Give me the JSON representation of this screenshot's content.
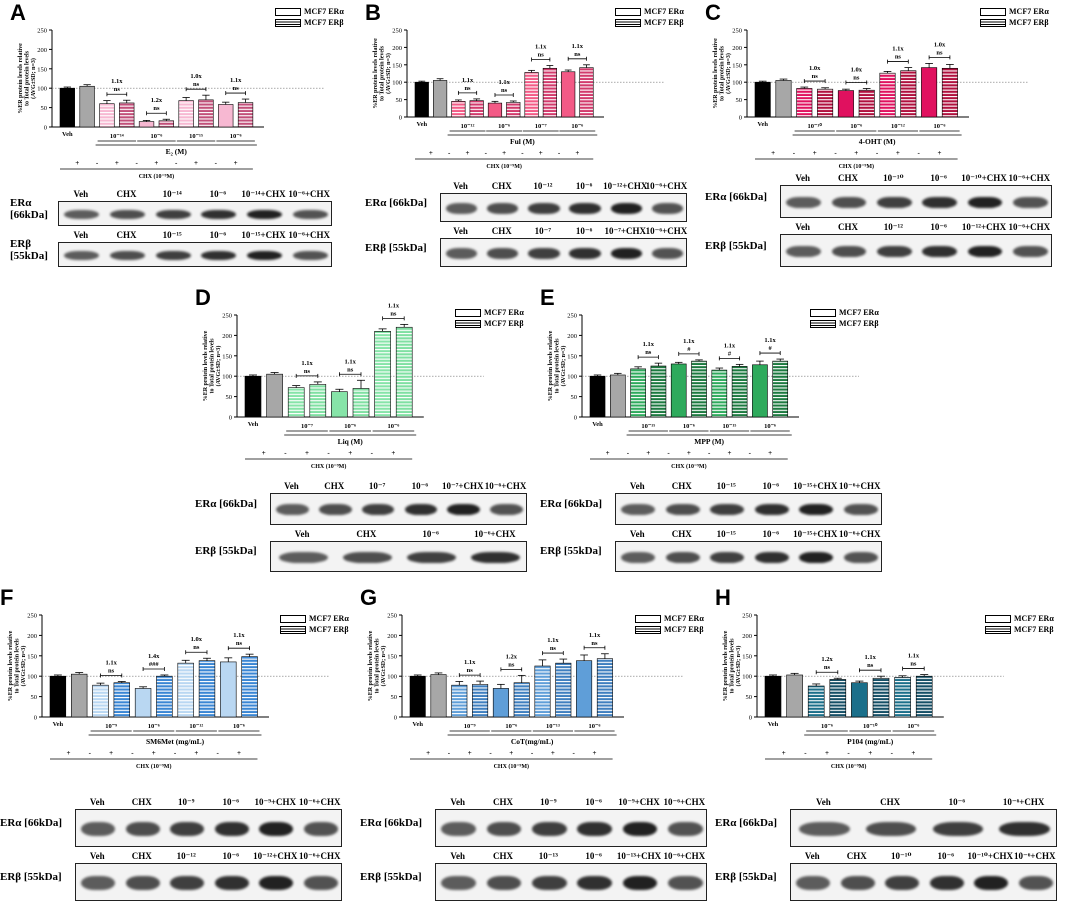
{
  "legend": {
    "alpha": "MCF7 ERα",
    "beta": "MCF7 ERβ"
  },
  "ylabel_lines": [
    "%ER protein levels relative",
    "to Total protein levels",
    "(AVG±SD; n=3)"
  ],
  "chx_label": "CHX (10⁻⁹M)",
  "veh": "Veh",
  "blot_labels": {
    "alpha": "ERα [66kDa]",
    "beta": "ERβ [55kDa]",
    "alpha_br": "ERα\n[66kDa]",
    "beta_br": "ERβ\n[55kDa]"
  },
  "chart_data": [
    {
      "letter": "A",
      "type": "bar",
      "ylim": [
        0,
        250
      ],
      "yticks": [
        0,
        50,
        100,
        150,
        200,
        250
      ],
      "xlabel": "E₂ (M)",
      "colors": {
        "alpha": "#f7b8d2",
        "beta": "#c2507a"
      },
      "bars": [
        {
          "series": "veh",
          "value": 100,
          "err": 3
        },
        {
          "series": "chx",
          "value": 105,
          "err": 4
        },
        {
          "series": "alpha",
          "value": 60,
          "err": 8
        },
        {
          "series": "beta",
          "value": 62,
          "err": 7
        },
        {
          "series": "alpha",
          "value": 14,
          "err": 3
        },
        {
          "series": "beta",
          "value": 16,
          "err": 4
        },
        {
          "series": "alpha",
          "value": 68,
          "err": 8
        },
        {
          "series": "beta",
          "value": 70,
          "err": 12
        },
        {
          "series": "alpha",
          "value": 58,
          "err": 6
        },
        {
          "series": "beta",
          "value": 63,
          "err": 9
        }
      ],
      "groups": [
        "10⁻¹⁴",
        "10⁻⁶",
        "10⁻¹⁵",
        "10⁻⁶"
      ],
      "annotations": [
        {
          "fold": "1.1x",
          "sig": "ns"
        },
        {
          "fold": "1.2x",
          "sig": "ns"
        },
        {
          "fold": "1.0x",
          "sig": "ns"
        },
        {
          "fold": "1.1x",
          "sig": "ns"
        }
      ],
      "chx_signs": [
        "+",
        "-",
        "+",
        "-",
        "+",
        "-",
        "+",
        "-",
        "+"
      ],
      "blot_alpha_lanes": [
        "Veh",
        "CHX",
        "10⁻¹⁴",
        "10⁻⁶",
        "10⁻¹⁴+CHX",
        "10⁻⁶+CHX"
      ],
      "blot_beta_lanes": [
        "Veh",
        "CHX",
        "10⁻¹⁵",
        "10⁻⁶",
        "10⁻¹⁵+CHX",
        "10⁻⁶+CHX"
      ]
    },
    {
      "letter": "B",
      "type": "bar",
      "ylim": [
        0,
        250
      ],
      "yticks": [
        0,
        50,
        100,
        150,
        200,
        250
      ],
      "xlabel": "Ful (M)",
      "colors": {
        "alpha": "#f35a86",
        "beta": "#d23a6c"
      },
      "bars": [
        {
          "series": "veh",
          "value": 100,
          "err": 3
        },
        {
          "series": "chx",
          "value": 105,
          "err": 5
        },
        {
          "series": "alpha",
          "value": 45,
          "err": 4
        },
        {
          "series": "beta",
          "value": 47,
          "err": 5
        },
        {
          "series": "alpha",
          "value": 40,
          "err": 5
        },
        {
          "series": "beta",
          "value": 42,
          "err": 4
        },
        {
          "series": "alpha",
          "value": 128,
          "err": 6
        },
        {
          "series": "beta",
          "value": 140,
          "err": 8
        },
        {
          "series": "alpha",
          "value": 130,
          "err": 5
        },
        {
          "series": "beta",
          "value": 142,
          "err": 8
        }
      ],
      "groups": [
        "10⁻¹²",
        "10⁻⁶",
        "10⁻⁷",
        "10⁻⁶"
      ],
      "annotations": [
        {
          "fold": "1.1x",
          "sig": "ns"
        },
        {
          "fold": "1.1x",
          "sig": "ns"
        },
        {
          "fold": "1.1x",
          "sig": "ns"
        },
        {
          "fold": "1.1x",
          "sig": "ns"
        }
      ],
      "chx_signs": [
        "+",
        "-",
        "+",
        "-",
        "+",
        "-",
        "+",
        "-",
        "+"
      ],
      "blot_alpha_lanes": [
        "Veh",
        "CHX",
        "10⁻¹²",
        "10⁻⁶",
        "10⁻¹²+CHX",
        "10⁻⁶+CHX"
      ],
      "blot_beta_lanes": [
        "Veh",
        "CHX",
        "10⁻⁷",
        "10⁻⁶",
        "10⁻⁷+CHX",
        "10⁻⁶+CHX"
      ]
    },
    {
      "letter": "C",
      "type": "bar",
      "ylim": [
        0,
        250
      ],
      "yticks": [
        0,
        50,
        100,
        150,
        200,
        250
      ],
      "xlabel": "4-OHT (M)",
      "colors": {
        "alpha": "#e0115f",
        "beta": "#b0103e"
      },
      "bars": [
        {
          "series": "veh",
          "value": 100,
          "err": 3
        },
        {
          "series": "chx",
          "value": 105,
          "err": 4
        },
        {
          "series": "alpha",
          "value": 82,
          "err": 4
        },
        {
          "series": "beta",
          "value": 80,
          "err": 4
        },
        {
          "series": "alpha",
          "value": 76,
          "err": 4
        },
        {
          "series": "beta",
          "value": 77,
          "err": 5
        },
        {
          "series": "alpha",
          "value": 126,
          "err": 5
        },
        {
          "series": "beta",
          "value": 133,
          "err": 9
        },
        {
          "series": "alpha",
          "value": 142,
          "err": 12
        },
        {
          "series": "beta",
          "value": 140,
          "err": 11
        }
      ],
      "groups": [
        "10⁻¹⁰",
        "10⁻⁶",
        "10⁻¹²",
        "10⁻⁶"
      ],
      "annotations": [
        {
          "fold": "1.0x",
          "sig": "ns"
        },
        {
          "fold": "1.0x",
          "sig": "ns"
        },
        {
          "fold": "1.1x",
          "sig": "ns"
        },
        {
          "fold": "1.0x",
          "sig": "ns"
        }
      ],
      "chx_signs": [
        "+",
        "-",
        "+",
        "-",
        "+",
        "-",
        "+",
        "-",
        "+"
      ],
      "blot_alpha_lanes": [
        "Veh",
        "CHX",
        "10⁻¹⁰",
        "10⁻⁶",
        "10⁻¹⁰+CHX",
        "10⁻⁶+CHX"
      ],
      "blot_beta_lanes": [
        "Veh",
        "CHX",
        "10⁻¹²",
        "10⁻⁶",
        "10⁻¹²+CHX",
        "10⁻⁶+CHX"
      ]
    },
    {
      "letter": "D",
      "type": "bar",
      "ylim": [
        0,
        250
      ],
      "yticks": [
        0,
        50,
        100,
        150,
        200,
        250
      ],
      "xlabel": "Liq (M)",
      "colors": {
        "alpha": "#86e4a8",
        "beta": "#7fe0a2"
      },
      "bars": [
        {
          "series": "veh",
          "value": 100,
          "err": 3
        },
        {
          "series": "chx",
          "value": 105,
          "err": 4
        },
        {
          "series": "alpha",
          "value": 72,
          "err": 5
        },
        {
          "series": "beta",
          "value": 80,
          "err": 6
        },
        {
          "series": "alpha",
          "value": 62,
          "err": 6
        },
        {
          "series": "beta",
          "value": 70,
          "err": 20
        },
        {
          "series": "alpha",
          "value": 210,
          "err": 6
        },
        {
          "series": "beta",
          "value": 220,
          "err": 7
        }
      ],
      "groups": [
        "10⁻⁷",
        "10⁻⁶",
        "10⁻⁶"
      ],
      "annotations": [
        {
          "fold": "1.1x",
          "sig": "ns"
        },
        {
          "fold": "1.1x",
          "sig": "ns"
        },
        {
          "fold": "1.1x",
          "sig": "ns"
        }
      ],
      "chx_signs": [
        "+",
        "-",
        "+",
        "-",
        "+",
        "-",
        "+"
      ],
      "blot_alpha_lanes": [
        "Veh",
        "CHX",
        "10⁻⁷",
        "10⁻⁶",
        "10⁻⁷+CHX",
        "10⁻⁶+CHX"
      ],
      "blot_beta_lanes": [
        "Veh",
        "CHX",
        "10⁻⁶",
        "10⁻⁶+CHX"
      ]
    },
    {
      "letter": "E",
      "type": "bar",
      "ylim": [
        0,
        250
      ],
      "yticks": [
        0,
        50,
        100,
        150,
        200,
        250
      ],
      "xlabel": "MPP (M)",
      "colors": {
        "alpha": "#2eaa5c",
        "beta": "#1c7a40"
      },
      "bars": [
        {
          "series": "veh",
          "value": 100,
          "err": 3
        },
        {
          "series": "chx",
          "value": 103,
          "err": 4
        },
        {
          "series": "alpha",
          "value": 118,
          "err": 5
        },
        {
          "series": "beta",
          "value": 125,
          "err": 7
        },
        {
          "series": "alpha",
          "value": 130,
          "err": 4
        },
        {
          "series": "beta",
          "value": 137,
          "err": 3
        },
        {
          "series": "alpha",
          "value": 115,
          "err": 5
        },
        {
          "series": "beta",
          "value": 124,
          "err": 5
        },
        {
          "series": "alpha",
          "value": 128,
          "err": 9
        },
        {
          "series": "beta",
          "value": 137,
          "err": 5
        }
      ],
      "groups": [
        "10⁻¹⁵",
        "10⁻⁶",
        "10⁻¹⁵",
        "10⁻⁶"
      ],
      "annotations": [
        {
          "fold": "1.1x",
          "sig": "ns"
        },
        {
          "fold": "1.1x",
          "sig": "#"
        },
        {
          "fold": "1.1x",
          "sig": "#"
        },
        {
          "fold": "1.1x",
          "sig": "#"
        }
      ],
      "chx_signs": [
        "+",
        "-",
        "+",
        "-",
        "+",
        "-",
        "+",
        "-",
        "+"
      ],
      "blot_alpha_lanes": [
        "Veh",
        "CHX",
        "10⁻¹⁵",
        "10⁻⁶",
        "10⁻¹⁵+CHX",
        "10⁻⁶+CHX"
      ],
      "blot_beta_lanes": [
        "Veh",
        "CHX",
        "10⁻¹⁵",
        "10⁻⁶",
        "10⁻¹⁵+CHX",
        "10⁻⁶+CHX"
      ]
    },
    {
      "letter": "F",
      "type": "bar",
      "ylim": [
        0,
        250
      ],
      "yticks": [
        0,
        50,
        100,
        150,
        200,
        250
      ],
      "xlabel": "SM6Met (mg/mL)",
      "colors": {
        "alpha": "#b9d7f2",
        "beta": "#3a86d4"
      },
      "bars": [
        {
          "series": "veh",
          "value": 100,
          "err": 3
        },
        {
          "series": "chx",
          "value": 105,
          "err": 4
        },
        {
          "series": "alpha",
          "value": 78,
          "err": 5
        },
        {
          "series": "beta",
          "value": 84,
          "err": 3
        },
        {
          "series": "alpha",
          "value": 70,
          "err": 4
        },
        {
          "series": "beta",
          "value": 100,
          "err": 3
        },
        {
          "series": "alpha",
          "value": 132,
          "err": 7
        },
        {
          "series": "beta",
          "value": 138,
          "err": 6
        },
        {
          "series": "alpha",
          "value": 135,
          "err": 10
        },
        {
          "series": "beta",
          "value": 148,
          "err": 6
        }
      ],
      "groups": [
        "10⁻⁹",
        "10⁻⁶",
        "10⁻¹²",
        "10⁻⁶"
      ],
      "annotations": [
        {
          "fold": "1.1x",
          "sig": "ns"
        },
        {
          "fold": "1.4x",
          "sig": "###"
        },
        {
          "fold": "1.0x",
          "sig": "ns"
        },
        {
          "fold": "1.1x",
          "sig": "ns"
        }
      ],
      "chx_signs": [
        "+",
        "-",
        "+",
        "-",
        "+",
        "-",
        "+",
        "-",
        "+"
      ],
      "blot_alpha_lanes": [
        "Veh",
        "CHX",
        "10⁻⁹",
        "10⁻⁶",
        "10⁻⁹+CHX",
        "10⁻⁶+CHX"
      ],
      "blot_beta_lanes": [
        "Veh",
        "CHX",
        "10⁻¹²",
        "10⁻⁶",
        "10⁻¹²+CHX",
        "10⁻⁶+CHX"
      ]
    },
    {
      "letter": "G",
      "type": "bar",
      "ylim": [
        0,
        250
      ],
      "yticks": [
        0,
        50,
        100,
        150,
        200,
        250
      ],
      "xlabel": "CoT(mg/mL)",
      "colors": {
        "alpha": "#5f9ed8",
        "beta": "#3f7fbf"
      },
      "bars": [
        {
          "series": "veh",
          "value": 100,
          "err": 3
        },
        {
          "series": "chx",
          "value": 104,
          "err": 4
        },
        {
          "series": "alpha",
          "value": 78,
          "err": 9
        },
        {
          "series": "beta",
          "value": 80,
          "err": 8
        },
        {
          "series": "alpha",
          "value": 70,
          "err": 10
        },
        {
          "series": "beta",
          "value": 84,
          "err": 18
        },
        {
          "series": "alpha",
          "value": 125,
          "err": 15
        },
        {
          "series": "beta",
          "value": 132,
          "err": 10
        },
        {
          "series": "alpha",
          "value": 138,
          "err": 14
        },
        {
          "series": "beta",
          "value": 143,
          "err": 12
        }
      ],
      "groups": [
        "10⁻⁹",
        "10⁻⁶",
        "10⁻¹³",
        "10⁻⁶"
      ],
      "annotations": [
        {
          "fold": "1.1x",
          "sig": "ns"
        },
        {
          "fold": "1.2x",
          "sig": "ns"
        },
        {
          "fold": "1.1x",
          "sig": "ns"
        },
        {
          "fold": "1.1x",
          "sig": "ns"
        }
      ],
      "chx_signs": [
        "+",
        "-",
        "+",
        "-",
        "+",
        "-",
        "+",
        "-",
        "+"
      ],
      "blot_alpha_lanes": [
        "Veh",
        "CHX",
        "10⁻⁹",
        "10⁻⁶",
        "10⁻⁹+CHX",
        "10⁻⁶+CHX"
      ],
      "blot_beta_lanes": [
        "Veh",
        "CHX",
        "10⁻¹³",
        "10⁻⁶",
        "10⁻¹³+CHX",
        "10⁻⁶+CHX"
      ]
    },
    {
      "letter": "H",
      "type": "bar",
      "ylim": [
        0,
        250
      ],
      "yticks": [
        0,
        50,
        100,
        150,
        200,
        250
      ],
      "xlabel": "P104 (mg/mL)",
      "colors": {
        "alpha": "#1b6f8a",
        "beta": "#154f66"
      },
      "bars": [
        {
          "series": "veh",
          "value": 100,
          "err": 3
        },
        {
          "series": "chx",
          "value": 103,
          "err": 4
        },
        {
          "series": "alpha",
          "value": 76,
          "err": 5
        },
        {
          "series": "beta",
          "value": 92,
          "err": 3
        },
        {
          "series": "alpha",
          "value": 84,
          "err": 4
        },
        {
          "series": "beta",
          "value": 95,
          "err": 5
        },
        {
          "series": "alpha",
          "value": 97,
          "err": 4
        },
        {
          "series": "beta",
          "value": 100,
          "err": 4
        }
      ],
      "groups": [
        "10⁻⁶",
        "10⁻¹⁰",
        "10⁻⁶"
      ],
      "annotations": [
        {
          "fold": "1.2x",
          "sig": "ns"
        },
        {
          "fold": "1.1x",
          "sig": "ns"
        },
        {
          "fold": "1.1x",
          "sig": "ns"
        }
      ],
      "chx_signs": [
        "+",
        "-",
        "+",
        "-",
        "+",
        "-",
        "+"
      ],
      "blot_alpha_lanes": [
        "Veh",
        "CHX",
        "10⁻⁶",
        "10⁻⁶+CHX"
      ],
      "blot_beta_lanes": [
        "Veh",
        "CHX",
        "10⁻¹⁰",
        "10⁻⁶",
        "10⁻¹⁰+CHX",
        "10⁻⁶+CHX"
      ]
    }
  ]
}
